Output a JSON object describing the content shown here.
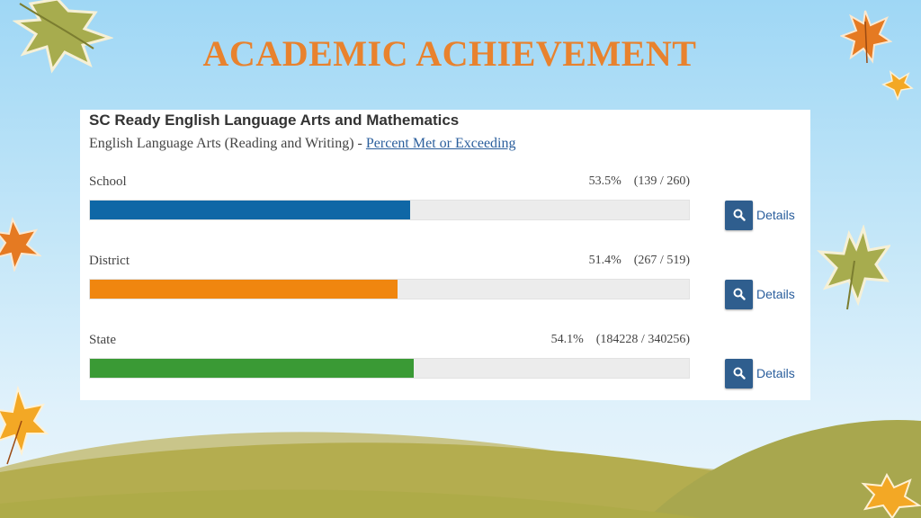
{
  "slide": {
    "title": "ACADEMIC ACHIEVEMENT"
  },
  "panel": {
    "heading": "SC Ready English Language Arts and Mathematics",
    "subheading_text": "English Language Arts (Reading and Writing) - ",
    "subheading_link": "Percent Met or Exceeding",
    "details_label": "Details",
    "rows": [
      {
        "label": "School",
        "stat": "53.5%    (139 / 260)",
        "percent": 53.5,
        "color": "#0f67a6"
      },
      {
        "label": "District",
        "stat": "51.4%    (267 / 519)",
        "percent": 51.4,
        "color": "#f0860f"
      },
      {
        "label": "State",
        "stat": "54.1%    (184228 / 340256)",
        "percent": 54.1,
        "color": "#3a9a35"
      }
    ]
  },
  "colors": {
    "title": "#e8822e",
    "link": "#2a5e9c",
    "details_button": "#2f5e8e",
    "track": "#ececec"
  },
  "icons": [
    "leaf-icon",
    "search-icon"
  ]
}
